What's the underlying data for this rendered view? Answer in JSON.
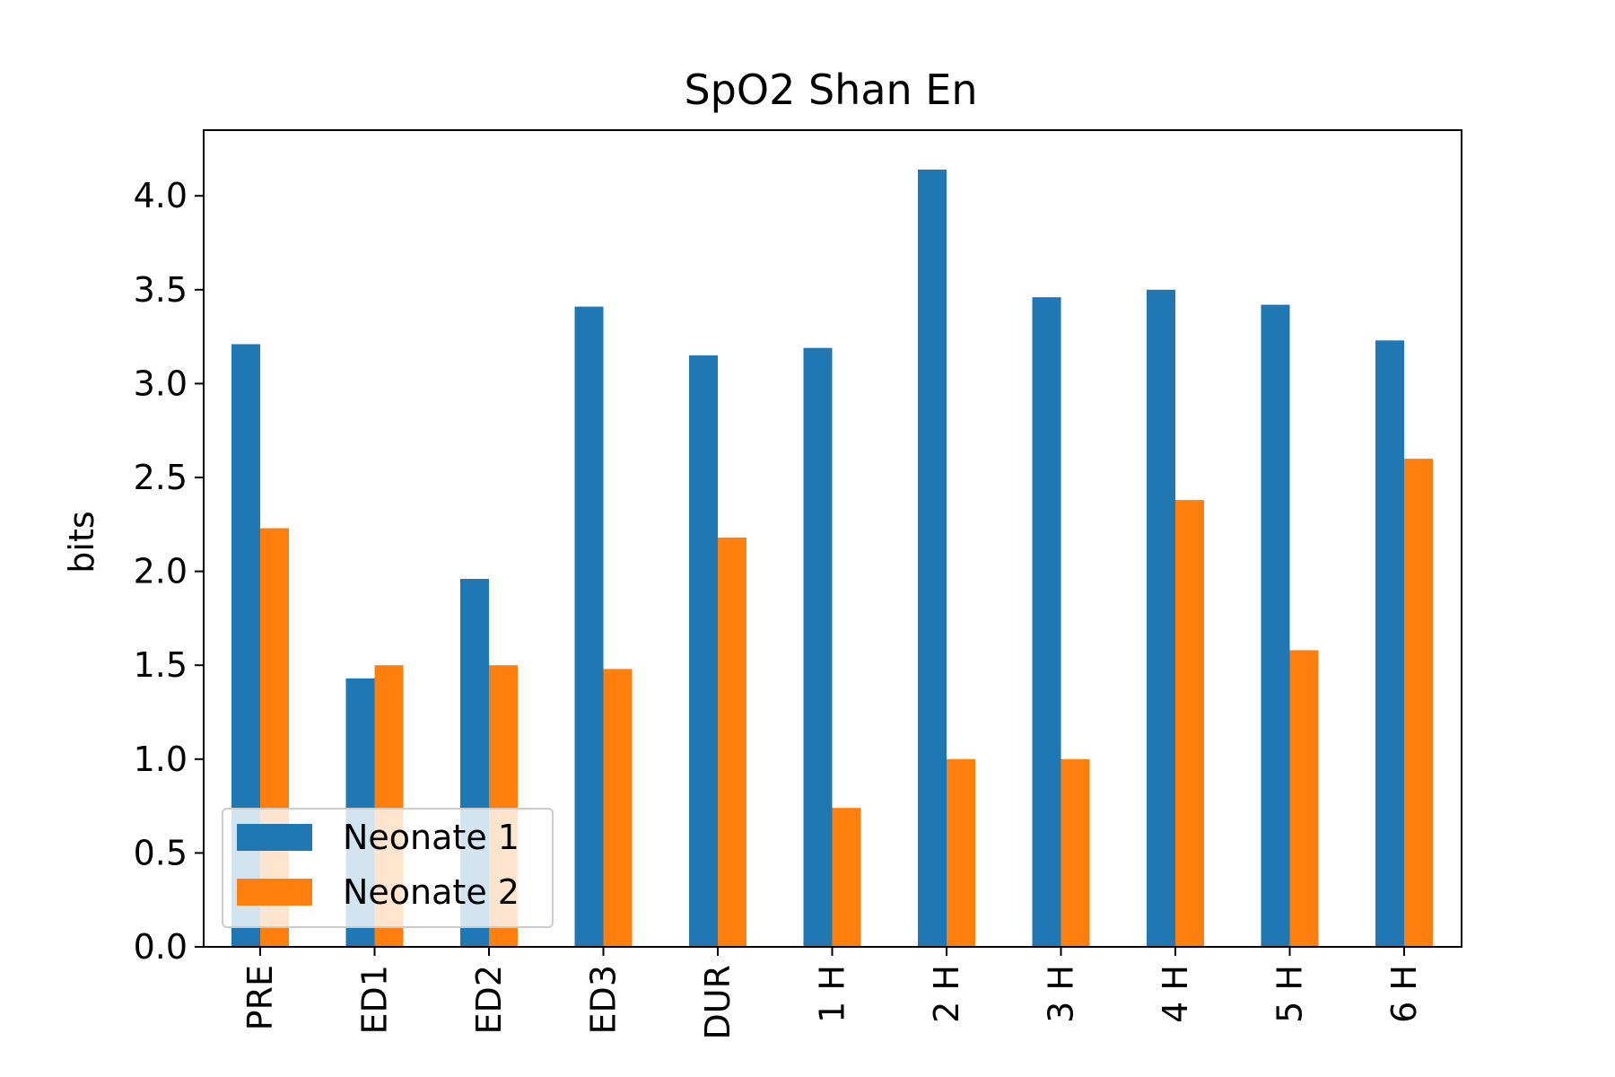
{
  "chart_data": {
    "type": "bar",
    "title": "SpO2 Shan En",
    "xlabel": "",
    "ylabel": "bits",
    "categories": [
      "PRE",
      "ED1",
      "ED2",
      "ED3",
      "DUR",
      "1 H",
      "2 H",
      "3 H",
      "4 H",
      "5 H",
      "6 H"
    ],
    "series": [
      {
        "name": "Neonate 1",
        "color": "#1f77b4",
        "values": [
          3.21,
          1.43,
          1.96,
          3.41,
          3.15,
          3.19,
          4.14,
          3.46,
          3.5,
          3.42,
          3.23
        ]
      },
      {
        "name": "Neonate 2",
        "color": "#ff7f0e",
        "values": [
          2.23,
          1.5,
          1.5,
          1.48,
          2.18,
          0.74,
          1.0,
          1.0,
          2.38,
          1.58,
          2.6
        ]
      }
    ],
    "ylim": [
      0,
      4.35
    ],
    "yticks": [
      "0.0",
      "0.5",
      "1.0",
      "1.5",
      "2.0",
      "2.5",
      "3.0",
      "3.5",
      "4.0"
    ],
    "grid": false,
    "legend": "lower-left"
  }
}
